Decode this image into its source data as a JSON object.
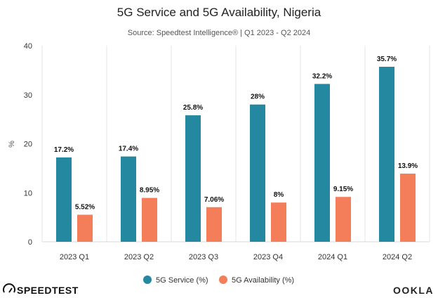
{
  "chart_data": {
    "type": "bar",
    "title": "5G Service and 5G Availability, Nigeria",
    "subtitle": "Source: Speedtest Intelligence® | Q1 2023 - Q2 2024",
    "ylabel": "%",
    "ylim": [
      0,
      40
    ],
    "yticks": [
      0,
      10,
      20,
      30,
      40
    ],
    "grid": "vertical separators between categories",
    "legend_position": "bottom-center",
    "categories": [
      "2023 Q1",
      "2023 Q2",
      "2023 Q3",
      "2023 Q4",
      "2024 Q1",
      "2024 Q2"
    ],
    "series": [
      {
        "name": "5G Service (%)",
        "color": "#2489a0",
        "values": [
          17.2,
          17.4,
          25.8,
          28,
          32.2,
          35.7
        ],
        "labels": [
          "17.2%",
          "17.4%",
          "25.8%",
          "28%",
          "32.2%",
          "35.7%"
        ]
      },
      {
        "name": "5G Availability (%)",
        "color": "#f47d5a",
        "values": [
          5.52,
          8.95,
          7.06,
          8,
          9.15,
          13.9
        ],
        "labels": [
          "5.52%",
          "8.95%",
          "7.06%",
          "8%",
          "9.15%",
          "13.9%"
        ]
      }
    ]
  },
  "branding": {
    "left_logo_text": "SPEEDTEST",
    "right_logo_text": "OOKLA"
  }
}
